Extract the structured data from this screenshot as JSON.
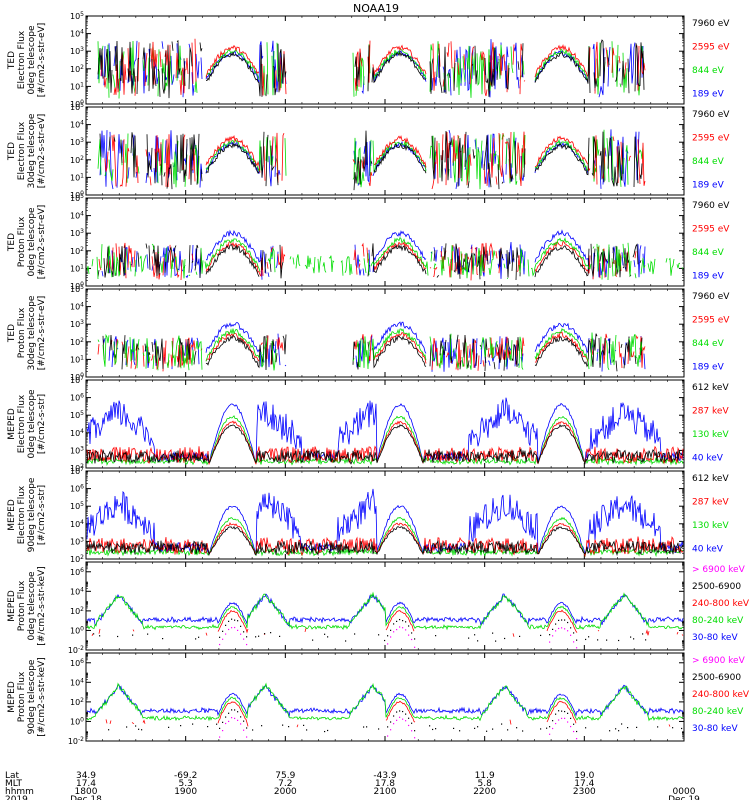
{
  "chart_data": {
    "type": "line",
    "title": "NOAA19",
    "x_time": {
      "start_hhmm": "1800",
      "end_hhmm": "0000",
      "ticks_hhmm": [
        "1800",
        "1900",
        "2000",
        "2100",
        "2200",
        "2300"
      ],
      "minor_ticks_per_major": 6
    },
    "ephemeris": {
      "row_labels": [
        "Lat",
        "MLT",
        "hhmm",
        "2019"
      ],
      "columns": [
        {
          "hhmm": "1800",
          "lat": "34.9",
          "mlt": "17.4",
          "date": "Dec 18"
        },
        {
          "hhmm": "1900",
          "lat": "-69.2",
          "mlt": "5.3",
          "date": ""
        },
        {
          "hhmm": "2000",
          "lat": "75.9",
          "mlt": "7.2",
          "date": ""
        },
        {
          "hhmm": "2100",
          "lat": "-43.9",
          "mlt": "17.8",
          "date": ""
        },
        {
          "hhmm": "2200",
          "lat": "11.9",
          "mlt": "5.8",
          "date": ""
        },
        {
          "hhmm": "2300",
          "lat": "19.0",
          "mlt": "17.4",
          "date": ""
        },
        {
          "hhmm": "0000",
          "lat": "",
          "mlt": "",
          "date": "Dec 19"
        }
      ]
    },
    "panels": [
      {
        "ylabel": [
          "TED",
          "Electron Flux",
          "0deg telescope",
          "[#/cm2-s-str-eV]"
        ],
        "ylim_exp": [
          0,
          5
        ],
        "yticks": [
          "10^0",
          "10^1",
          "10^2",
          "10^3",
          "10^4",
          "10^5"
        ],
        "series": [
          {
            "name": "7960 eV",
            "color": "#000000"
          },
          {
            "name": "2595 eV",
            "color": "#ff0000"
          },
          {
            "name": "844 eV",
            "color": "#00dd00"
          },
          {
            "name": "189 eV",
            "color": "#0000ff"
          }
        ]
      },
      {
        "ylabel": [
          "TED",
          "Electron Flux",
          "30deg telescope",
          "[#/cm2-s-str-eV]"
        ],
        "ylim_exp": [
          0,
          5
        ],
        "yticks": [
          "10^0",
          "10^1",
          "10^2",
          "10^3",
          "10^4",
          "10^5"
        ],
        "series": [
          {
            "name": "7960 eV",
            "color": "#000000"
          },
          {
            "name": "2595 eV",
            "color": "#ff0000"
          },
          {
            "name": "844 eV",
            "color": "#00dd00"
          },
          {
            "name": "189 eV",
            "color": "#0000ff"
          }
        ]
      },
      {
        "ylabel": [
          "TED",
          "Proton Flux",
          "0deg telescope",
          "[#/cm2-s-str-eV]"
        ],
        "ylim_exp": [
          0,
          5
        ],
        "yticks": [
          "10^0",
          "10^1",
          "10^2",
          "10^3",
          "10^4",
          "10^5"
        ],
        "series": [
          {
            "name": "7960 eV",
            "color": "#000000"
          },
          {
            "name": "2595 eV",
            "color": "#ff0000"
          },
          {
            "name": "844 eV",
            "color": "#00dd00"
          },
          {
            "name": "189 eV",
            "color": "#0000ff"
          }
        ]
      },
      {
        "ylabel": [
          "TED",
          "Proton Flux",
          "30deg telescope",
          "[#/cm2-s-str-eV]"
        ],
        "ylim_exp": [
          0,
          5
        ],
        "yticks": [
          "10^0",
          "10^1",
          "10^2",
          "10^3",
          "10^4",
          "10^5"
        ],
        "series": [
          {
            "name": "7960 eV",
            "color": "#000000"
          },
          {
            "name": "2595 eV",
            "color": "#ff0000"
          },
          {
            "name": "844 eV",
            "color": "#00dd00"
          },
          {
            "name": "189 eV",
            "color": "#0000ff"
          }
        ]
      },
      {
        "ylabel": [
          "MEPED",
          "Electron Flux",
          "0deg telescope",
          "[#/cm2-s-str]"
        ],
        "ylim_exp": [
          2,
          7
        ],
        "yticks": [
          "10^2",
          "10^3",
          "10^4",
          "10^5",
          "10^6",
          "10^7"
        ],
        "series": [
          {
            "name": "612 keV",
            "color": "#000000"
          },
          {
            "name": "287 keV",
            "color": "#ff0000"
          },
          {
            "name": "130 keV",
            "color": "#00dd00"
          },
          {
            "name": "40 keV",
            "color": "#0000ff"
          }
        ]
      },
      {
        "ylabel": [
          "MEPED",
          "Electron Flux",
          "90deg telescope",
          "[#/cm2-s-str]"
        ],
        "ylim_exp": [
          2,
          7
        ],
        "yticks": [
          "10^2",
          "10^3",
          "10^4",
          "10^5",
          "10^6",
          "10^7"
        ],
        "series": [
          {
            "name": "612 keV",
            "color": "#000000"
          },
          {
            "name": "287 keV",
            "color": "#ff0000"
          },
          {
            "name": "130 keV",
            "color": "#00dd00"
          },
          {
            "name": "40 keV",
            "color": "#0000ff"
          }
        ]
      },
      {
        "ylabel": [
          "MEPED",
          "Proton Flux",
          "0deg telescope",
          "[#/cm2-s-str-keV]"
        ],
        "ylim_exp": [
          -2,
          7
        ],
        "yticks": [
          "10^-2",
          "10^0",
          "10^2",
          "10^4",
          "10^6"
        ],
        "series": [
          {
            "name": "> 6900 keV",
            "color": "#ff00ff"
          },
          {
            "name": "2500-6900",
            "color": "#000000"
          },
          {
            "name": "240-800 keV",
            "color": "#ff0000"
          },
          {
            "name": "80-240 keV",
            "color": "#00dd00"
          },
          {
            "name": "30-80 keV",
            "color": "#0000ff"
          }
        ]
      },
      {
        "ylabel": [
          "MEPED",
          "Proton Flux",
          "90deg telescope",
          "[#/cm2-s-str-keV]"
        ],
        "ylim_exp": [
          -2,
          7
        ],
        "yticks": [
          "10^-2",
          "10^0",
          "10^2",
          "10^4",
          "10^6"
        ],
        "series": [
          {
            "name": "> 6900 keV",
            "color": "#ff00ff"
          },
          {
            "name": "2500-6900",
            "color": "#000000"
          },
          {
            "name": "240-800 keV",
            "color": "#ff0000"
          },
          {
            "name": "80-240 keV",
            "color": "#00dd00"
          },
          {
            "name": "30-80 keV",
            "color": "#0000ff"
          }
        ]
      }
    ],
    "grid": false,
    "legend_placement": "right"
  }
}
